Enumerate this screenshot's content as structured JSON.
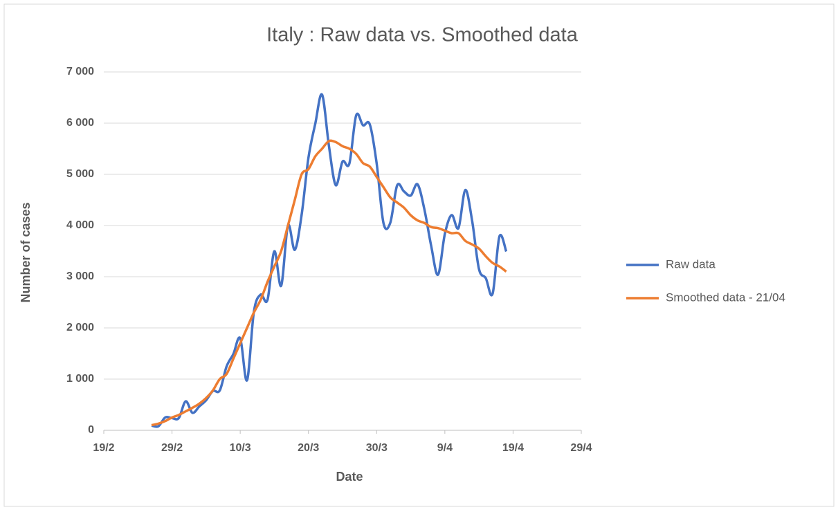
{
  "chart_data": {
    "type": "line",
    "title": "Italy : Raw data vs. Smoothed data",
    "x_label": "Date",
    "y_label": "Number of cases",
    "x": [
      "26/2",
      "27/2",
      "28/2",
      "29/2",
      "1/3",
      "2/3",
      "3/3",
      "4/3",
      "5/3",
      "6/3",
      "7/3",
      "8/3",
      "9/3",
      "10/3",
      "11/3",
      "12/3",
      "13/3",
      "14/3",
      "15/3",
      "16/3",
      "17/3",
      "18/3",
      "19/3",
      "20/3",
      "21/3",
      "22/3",
      "23/3",
      "24/3",
      "25/3",
      "26/3",
      "27/3",
      "28/3",
      "29/3",
      "30/3",
      "31/3",
      "1/4",
      "2/4",
      "3/4",
      "4/4",
      "5/4",
      "6/4",
      "7/4",
      "8/4",
      "9/4",
      "10/4",
      "11/4",
      "12/4",
      "13/4",
      "14/4",
      "15/4",
      "16/4",
      "17/4",
      "18/4"
    ],
    "series": [
      {
        "name": "Raw data",
        "color": "#4472c4",
        "values": [
          93,
          78,
          250,
          238,
          240,
          566,
          342,
          466,
          587,
          769,
          778,
          1247,
          1492,
          1797,
          977,
          2313,
          2651,
          2547,
          3497,
          2823,
          4000,
          3526,
          4207,
          5322,
          5986,
          6557,
          5560,
          4789,
          5249,
          5210,
          6153,
          5959,
          5974,
          5217,
          4050,
          4053,
          4782,
          4668,
          4585,
          4805,
          4316,
          3599,
          3039,
          3836,
          4204,
          3951,
          4694,
          4092,
          3153,
          2972,
          2667,
          3786,
          3493
        ]
      },
      {
        "name": "Smoothed data - 21/04",
        "color": "#ed7d31",
        "values": [
          100,
          130,
          180,
          250,
          300,
          370,
          440,
          520,
          630,
          780,
          1000,
          1100,
          1400,
          1700,
          2000,
          2300,
          2550,
          2900,
          3200,
          3500,
          4000,
          4500,
          5000,
          5100,
          5350,
          5500,
          5650,
          5630,
          5550,
          5500,
          5400,
          5220,
          5150,
          4950,
          4750,
          4550,
          4450,
          4350,
          4200,
          4100,
          4050,
          3970,
          3950,
          3900,
          3850,
          3850,
          3700,
          3630,
          3550,
          3400,
          3270,
          3200,
          3100
        ]
      }
    ],
    "xlim": [
      "19/2",
      "29/4"
    ],
    "xticks": [
      "19/2",
      "29/2",
      "10/3",
      "20/3",
      "30/3",
      "9/4",
      "19/4",
      "29/4"
    ],
    "ylim": [
      0,
      7000
    ],
    "yticks": [
      0,
      {
        "value": 1000,
        "label": "1 000"
      },
      {
        "value": 2000,
        "label": "2 000"
      },
      {
        "value": 3000,
        "label": "3 000"
      },
      {
        "value": 4000,
        "label": "4 000"
      },
      {
        "value": 5000,
        "label": "5 000"
      },
      {
        "value": 6000,
        "label": "6 000"
      },
      {
        "value": 7000,
        "label": "7 000"
      }
    ],
    "grid": true,
    "legend": "right"
  }
}
